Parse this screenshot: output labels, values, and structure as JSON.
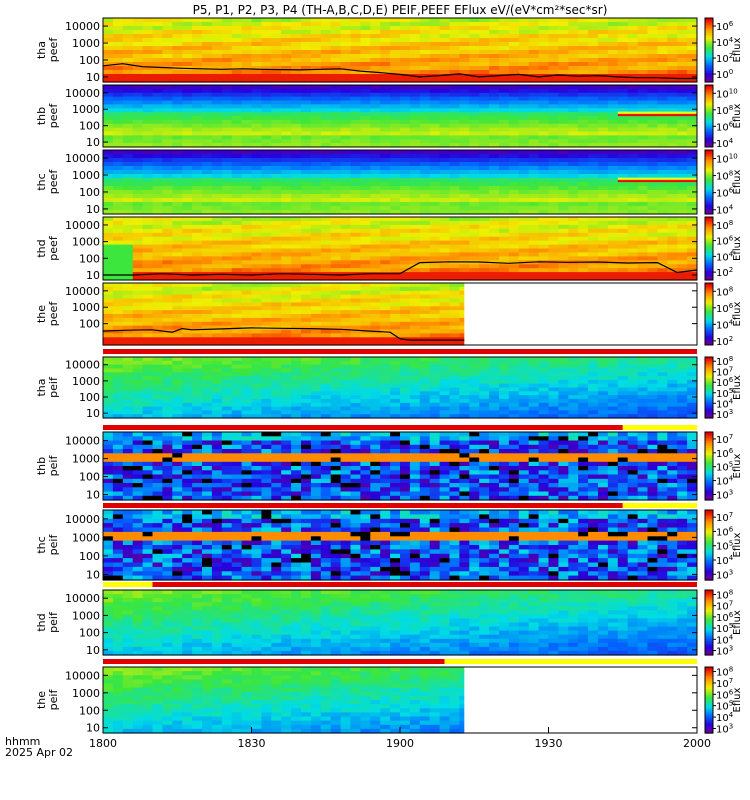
{
  "chart_data": {
    "type": "heatmap",
    "title": "P5, P1, P2, P3, P4 (TH-A,B,C,D,E) PEIF,PEEF EFlux eV/(eV*cm²*sec*sr)",
    "x": {
      "label": "hhmm",
      "date": "2025 Apr 02",
      "range": [
        "18:00",
        "20:00"
      ],
      "ticks": [
        {
          "label": "1800",
          "minutes": 0
        },
        {
          "label": "1830",
          "minutes": 30
        },
        {
          "label": "1900",
          "minutes": 60
        },
        {
          "label": "1930",
          "minutes": 90
        },
        {
          "label": "2000",
          "minutes": 120
        }
      ]
    },
    "y_axis": {
      "scale": "log",
      "units": "eV"
    },
    "colorbar_label": "Eflux",
    "panels": [
      {
        "probe": "tha",
        "instrument": "peef",
        "ylabel": [
          "tha",
          "peef"
        ],
        "yticks": [
          "10000",
          "1000",
          "100",
          "10"
        ],
        "ymax": 30000,
        "cbar_exp": [
          0,
          2,
          4,
          6
        ],
        "cbar_exp_min": -1,
        "cbar_exp_max": 7,
        "palette": "warm",
        "data_end_minutes": 120,
        "scpot_line": {
          "minutes": [
            0,
            4,
            8,
            12,
            16,
            20,
            24,
            28,
            32,
            36,
            40,
            44,
            48,
            52,
            56,
            60,
            64,
            68,
            72,
            76,
            80,
            84,
            88,
            92,
            96,
            100,
            104,
            108,
            112,
            116,
            120
          ],
          "eV": [
            45,
            60,
            40,
            36,
            32,
            30,
            28,
            30,
            28,
            27,
            26,
            28,
            30,
            22,
            18,
            14,
            10,
            12,
            15,
            10,
            12,
            14,
            10,
            13,
            11,
            12,
            10,
            9,
            9,
            8,
            8
          ]
        }
      },
      {
        "probe": "thb",
        "instrument": "peef",
        "ylabel": [
          "thb",
          "peef"
        ],
        "yticks": [
          "10000",
          "1000",
          "100",
          "10"
        ],
        "ymax": 30000,
        "cbar_exp": [
          4,
          6,
          8,
          10
        ],
        "cbar_exp_min": 3.5,
        "cbar_exp_max": 11,
        "palette": "band",
        "data_end_minutes": 120,
        "step_line": {
          "start_minutes": 104,
          "eV": 500
        }
      },
      {
        "probe": "thc",
        "instrument": "peef",
        "ylabel": [
          "thc",
          "peef"
        ],
        "yticks": [
          "10000",
          "1000",
          "100",
          "10"
        ],
        "ymax": 30000,
        "cbar_exp": [
          4,
          6,
          8,
          10
        ],
        "cbar_exp_min": 3.5,
        "cbar_exp_max": 11,
        "palette": "band",
        "data_end_minutes": 120,
        "step_line": {
          "start_minutes": 104,
          "eV": 500
        }
      },
      {
        "probe": "thd",
        "instrument": "peef",
        "ylabel": [
          "thd",
          "peef"
        ],
        "yticks": [
          "10000",
          "1000",
          "100",
          "10"
        ],
        "ymax": 30000,
        "cbar_exp": [
          2,
          4,
          6,
          8
        ],
        "cbar_exp_min": 1,
        "cbar_exp_max": 9,
        "palette": "warm",
        "data_end_minutes": 120,
        "scpot_line": {
          "minutes": [
            0,
            6,
            12,
            18,
            24,
            30,
            36,
            42,
            48,
            54,
            60,
            64,
            70,
            76,
            82,
            88,
            94,
            100,
            106,
            112,
            116,
            120
          ],
          "eV": [
            10,
            10,
            12,
            10,
            11,
            10,
            12,
            11,
            10,
            12,
            12,
            55,
            62,
            60,
            50,
            62,
            58,
            60,
            52,
            55,
            14,
            20
          ]
        }
      },
      {
        "probe": "the",
        "instrument": "peef",
        "ylabel": [
          "the",
          "peef"
        ],
        "yticks": [
          "10000",
          "1000",
          "100"
        ],
        "ymax": 30000,
        "cbar_exp": [
          2,
          4,
          6,
          8
        ],
        "cbar_exp_min": 1.5,
        "cbar_exp_max": 9,
        "palette": "warm",
        "data_end_minutes": 73,
        "scpot_line": {
          "minutes": [
            0,
            5,
            10,
            14,
            16,
            18,
            24,
            30,
            36,
            42,
            48,
            54,
            58,
            60,
            62,
            66,
            70,
            73
          ],
          "eV": [
            35,
            40,
            42,
            30,
            50,
            42,
            48,
            55,
            52,
            50,
            45,
            35,
            30,
            12,
            10,
            10,
            10,
            10
          ]
        }
      },
      {
        "probe": "tha",
        "instrument": "peif",
        "ylabel": [
          "tha",
          "peif"
        ],
        "yticks": [
          "10000",
          "1000",
          "100",
          "10"
        ],
        "ymax": 30000,
        "cbar_exp": [
          3,
          4,
          5,
          6,
          7,
          8
        ],
        "cbar_exp_min": 2.6,
        "cbar_exp_max": 8.4,
        "palette": "ion",
        "data_end_minutes": 120
      },
      {
        "probe": "thb",
        "instrument": "peif",
        "ylabel": [
          "thb",
          "peif"
        ],
        "yticks": [
          "10000",
          "1000",
          "100",
          "10"
        ],
        "ymax": 30000,
        "cbar_exp": [
          3,
          4,
          5,
          6,
          7
        ],
        "cbar_exp_min": 2.6,
        "cbar_exp_max": 7.5,
        "palette": "noisy",
        "data_end_minutes": 120
      },
      {
        "probe": "thc",
        "instrument": "peif",
        "ylabel": [
          "thc",
          "peif"
        ],
        "yticks": [
          "10000",
          "1000",
          "100",
          "10"
        ],
        "ymax": 30000,
        "cbar_exp": [
          3,
          4,
          5,
          6,
          7
        ],
        "cbar_exp_min": 2.6,
        "cbar_exp_max": 7.5,
        "palette": "noisy",
        "data_end_minutes": 120
      },
      {
        "probe": "thd",
        "instrument": "peif",
        "ylabel": [
          "thd",
          "peif"
        ],
        "yticks": [
          "10000",
          "1000",
          "100",
          "10"
        ],
        "ymax": 30000,
        "cbar_exp": [
          3,
          4,
          5,
          6,
          7,
          8
        ],
        "cbar_exp_min": 2.6,
        "cbar_exp_max": 8.4,
        "palette": "ion",
        "data_end_minutes": 120
      },
      {
        "probe": "the",
        "instrument": "peif",
        "ylabel": [
          "the",
          "peif"
        ],
        "yticks": [
          "10000",
          "1000",
          "100",
          "10"
        ],
        "ymax": 30000,
        "cbar_exp": [
          3,
          4,
          5,
          6,
          7,
          8
        ],
        "cbar_exp_min": 2.6,
        "cbar_exp_max": 8.4,
        "palette": "ion",
        "data_end_minutes": 73
      }
    ],
    "mode_bars": [
      {
        "segments": [
          {
            "from": 0,
            "to": 120,
            "color": "#e00000"
          }
        ]
      },
      {
        "segments": [
          {
            "from": 0,
            "to": 105,
            "color": "#e00000"
          },
          {
            "from": 105,
            "to": 120,
            "color": "#ffff00"
          }
        ]
      },
      {
        "segments": [
          {
            "from": 0,
            "to": 105,
            "color": "#e00000"
          },
          {
            "from": 105,
            "to": 120,
            "color": "#ffff00"
          }
        ]
      },
      {
        "segments": [
          {
            "from": 0,
            "to": 10,
            "color": "#ffff00"
          },
          {
            "from": 10,
            "to": 120,
            "color": "#e00000"
          }
        ]
      },
      {
        "segments": [
          {
            "from": 0,
            "to": 69,
            "color": "#e00000"
          },
          {
            "from": 69,
            "to": 120,
            "color": "#ffff00"
          }
        ]
      }
    ]
  }
}
